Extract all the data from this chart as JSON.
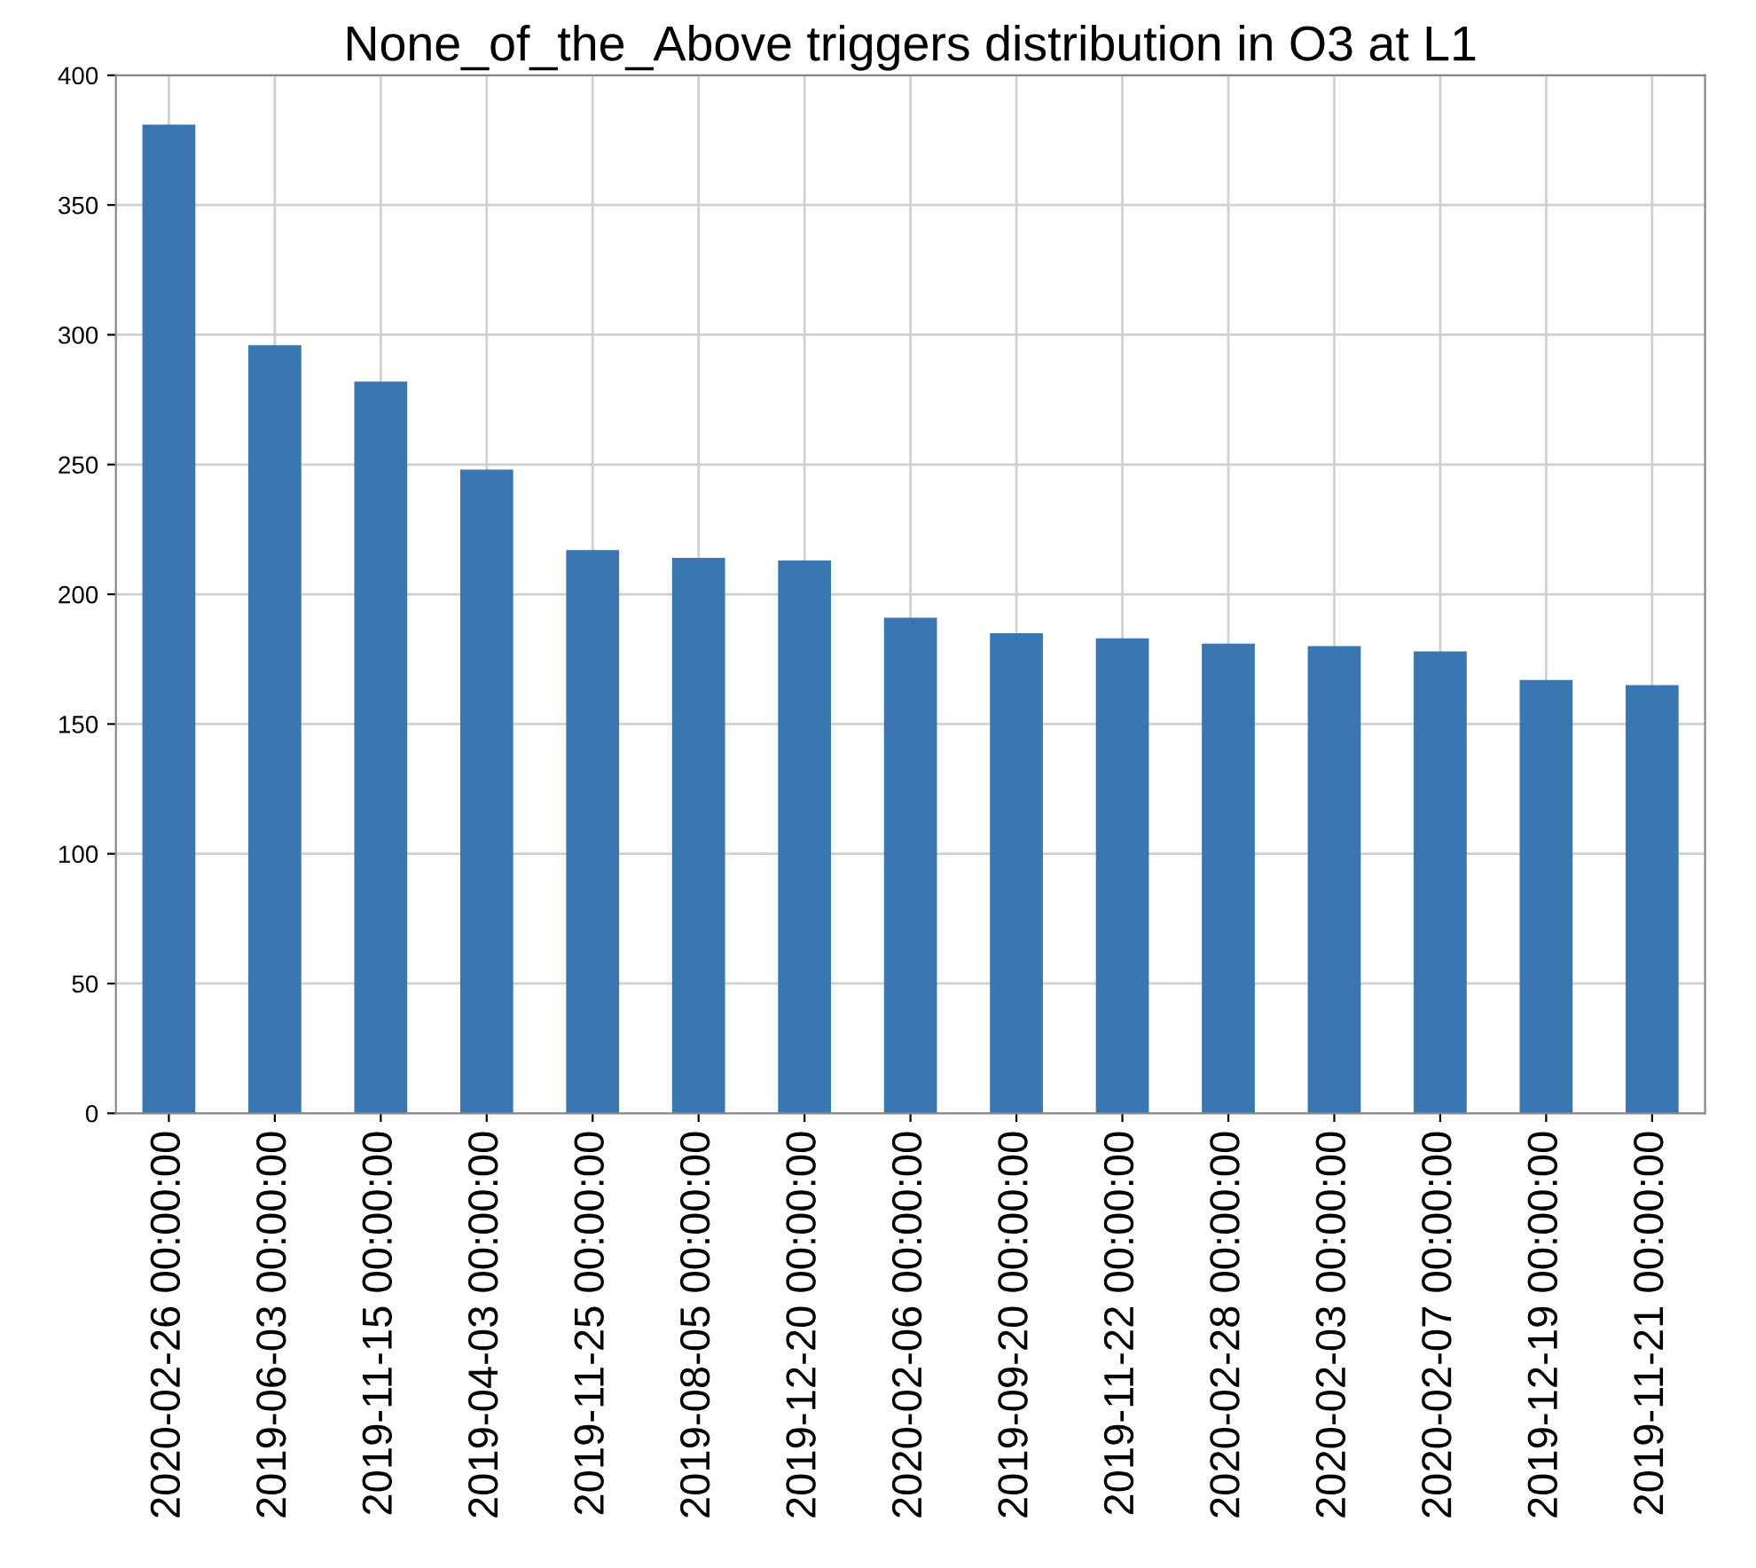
{
  "chart_data": {
    "type": "bar",
    "title": "None_of_the_Above triggers distribution in O3 at L1",
    "categories": [
      "2020-02-26 00:00:00",
      "2019-06-03 00:00:00",
      "2019-11-15 00:00:00",
      "2019-04-03 00:00:00",
      "2019-11-25 00:00:00",
      "2019-08-05 00:00:00",
      "2019-12-20 00:00:00",
      "2020-02-06 00:00:00",
      "2019-09-20 00:00:00",
      "2019-11-22 00:00:00",
      "2020-02-28 00:00:00",
      "2020-02-03 00:00:00",
      "2020-02-07 00:00:00",
      "2019-12-19 00:00:00",
      "2019-11-21 00:00:00"
    ],
    "values": [
      381,
      296,
      282,
      248,
      217,
      214,
      213,
      191,
      185,
      183,
      181,
      180,
      178,
      167,
      165
    ],
    "color": "#3a76af",
    "ylim": [
      0,
      400
    ],
    "yticks": [
      0,
      50,
      100,
      150,
      200,
      250,
      300,
      350,
      400
    ],
    "grid": true
  }
}
